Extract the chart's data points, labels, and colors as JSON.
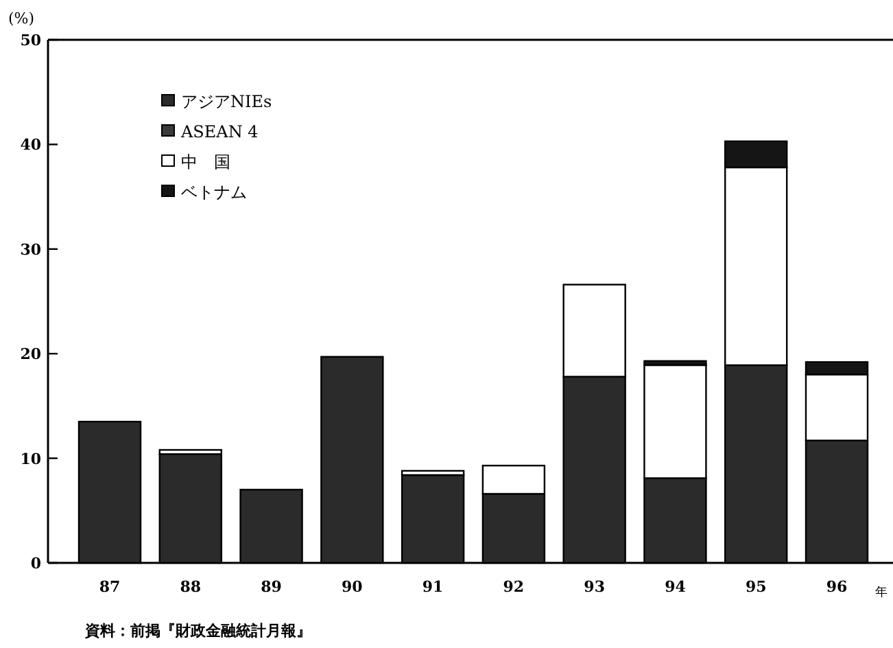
{
  "chart_data": {
    "type": "bar",
    "stacked": true,
    "ylabel": "(%)",
    "xlabel": "年",
    "categories": [
      "87",
      "88",
      "89",
      "90",
      "91",
      "92",
      "93",
      "94",
      "95",
      "96"
    ],
    "series": [
      {
        "name": "アジアNIEs",
        "color": "#2b2b2b",
        "values": [
          13.5,
          10.4,
          7.0,
          19.7,
          8.4,
          6.6,
          17.8,
          8.1,
          18.9,
          11.7
        ]
      },
      {
        "name": "ASEAN 4",
        "color": "#3a3a3a",
        "values": [
          null,
          null,
          null,
          null,
          null,
          null,
          null,
          null,
          null,
          null
        ]
      },
      {
        "name": "中　国",
        "color": "#ffffff",
        "values": [
          null,
          0.4,
          null,
          null,
          0.4,
          2.7,
          8.8,
          10.8,
          18.9,
          6.3
        ]
      },
      {
        "name": "ベトナム",
        "color": "#151515",
        "values": [
          null,
          null,
          null,
          null,
          null,
          null,
          null,
          0.4,
          2.5,
          1.2
        ]
      }
    ],
    "ylim": [
      0,
      50
    ],
    "yticks": [
      0,
      10,
      20,
      30,
      40,
      50
    ],
    "legend": "top left",
    "grid": false,
    "annotations": [
      "資料：前掲『財政金融統計月報』"
    ]
  }
}
